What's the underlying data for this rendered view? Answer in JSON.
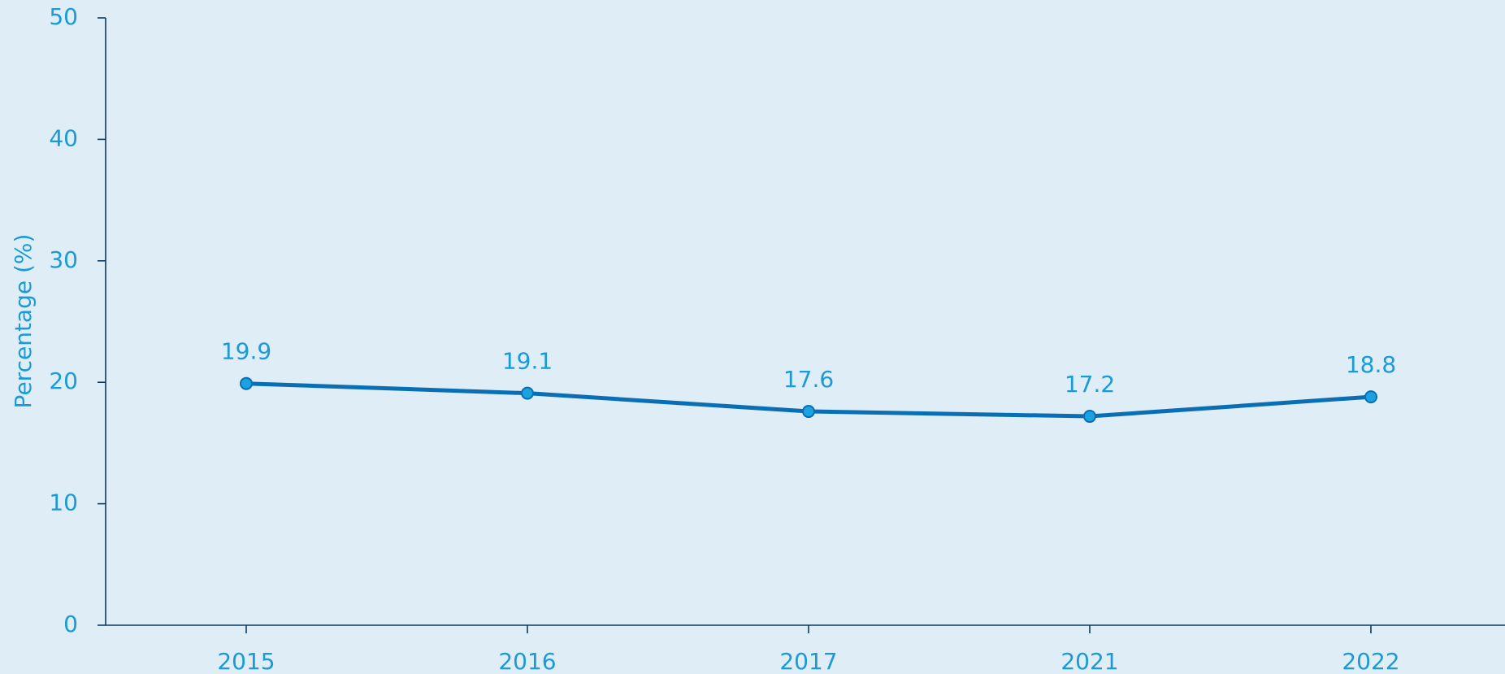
{
  "chart_data": {
    "type": "line",
    "y_label": "Percentage (%)",
    "categories": [
      "2015",
      "2016",
      "2017",
      "2021",
      "2022"
    ],
    "series": [
      {
        "color": "#0a6eb4",
        "values": [
          19.9,
          19.1,
          17.6,
          17.2,
          18.8
        ]
      }
    ],
    "ylim": [
      0,
      50
    ],
    "yticks": [
      0,
      10,
      20,
      30,
      40,
      50
    ],
    "grid": false
  }
}
